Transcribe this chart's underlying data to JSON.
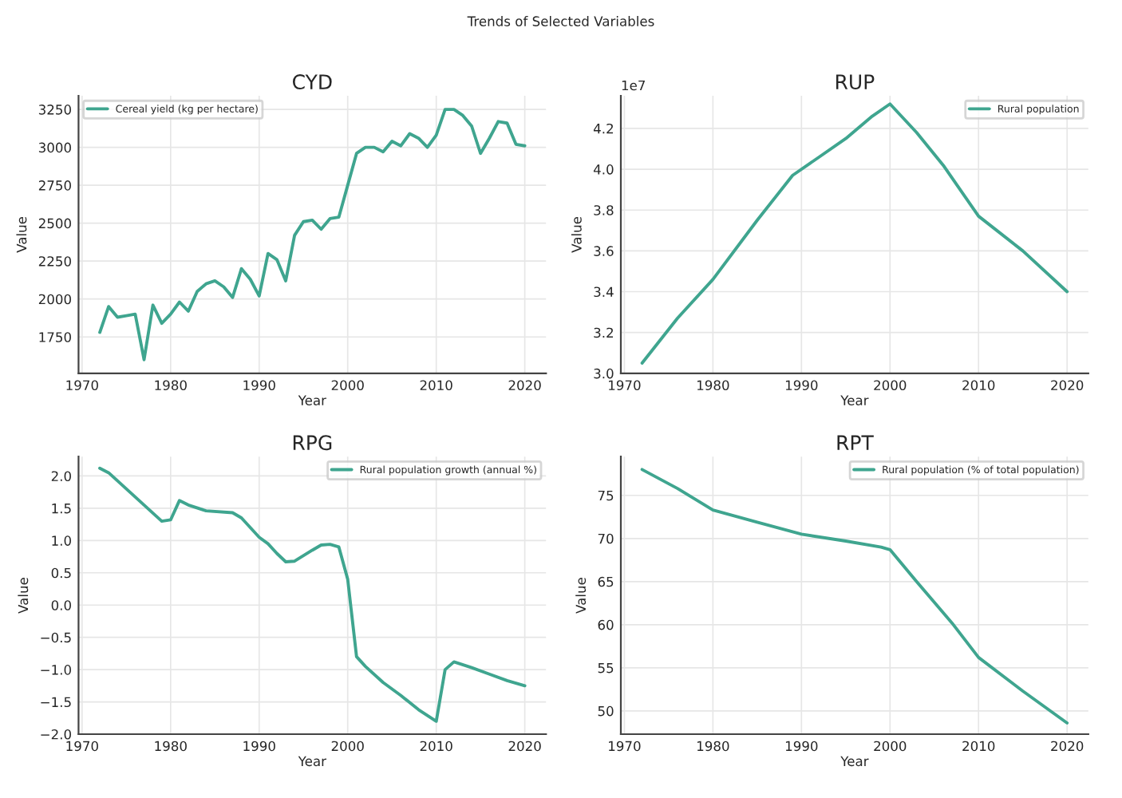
{
  "chart_data": [
    {
      "type": "line",
      "title": "CYD",
      "xlabel": "Year",
      "ylabel": "Value",
      "legend": "top left",
      "grid": true,
      "annotations": [
        "Trends of Selected Variables"
      ],
      "x": [
        1972,
        1973,
        1974,
        1975,
        1976,
        1977,
        1978,
        1979,
        1980,
        1981,
        1982,
        1983,
        1984,
        1985,
        1986,
        1987,
        1988,
        1989,
        1990,
        1991,
        1992,
        1993,
        1994,
        1995,
        1996,
        1997,
        1998,
        1999,
        2000,
        2001,
        2002,
        2003,
        2004,
        2005,
        2006,
        2007,
        2008,
        2009,
        2010,
        2011,
        2012,
        2013,
        2014,
        2015,
        2016,
        2017,
        2018,
        2019,
        2020
      ],
      "series": [
        {
          "name": "Cereal yield (kg per hectare)",
          "color": "#3fa58f",
          "values": [
            1780,
            1950,
            1880,
            1890,
            1900,
            1600,
            1960,
            1840,
            1900,
            1980,
            1920,
            2050,
            2100,
            2120,
            2080,
            2010,
            2200,
            2130,
            2020,
            2300,
            2260,
            2120,
            2420,
            2510,
            2520,
            2460,
            2530,
            2540,
            2750,
            2960,
            3000,
            3000,
            2970,
            3040,
            3010,
            3090,
            3060,
            3000,
            3080,
            3250,
            3250,
            3210,
            3140,
            2960,
            3060,
            3170,
            3160,
            3020,
            3010
          ]
        }
      ],
      "xlim": [
        1969.6,
        2022.4
      ],
      "xticks": [
        1970,
        1980,
        1990,
        2000,
        2010,
        2020
      ],
      "ylim": [
        1510,
        3340
      ],
      "yticks": [
        1750,
        2000,
        2250,
        2500,
        2750,
        3000,
        3250
      ]
    },
    {
      "type": "line",
      "title": "RUP",
      "xlabel": "Year",
      "ylabel": "Value",
      "legend": "top right",
      "grid": true,
      "annotations": [
        "1e7"
      ],
      "x": [
        1972,
        1976,
        1980,
        1985,
        1989,
        1992,
        1995,
        1998,
        2000,
        2003,
        2006,
        2010,
        2015,
        2020
      ],
      "series": [
        {
          "name": "Rural population",
          "color": "#3fa58f",
          "values": [
            3.05,
            3.27,
            3.46,
            3.75,
            3.97,
            4.06,
            4.15,
            4.26,
            4.32,
            4.18,
            4.02,
            3.77,
            3.6,
            3.4
          ]
        }
      ],
      "xlim": [
        1969.6,
        2022.4
      ],
      "xticks": [
        1970,
        1980,
        1990,
        2000,
        2010,
        2020
      ],
      "ylim": [
        3.0,
        4.36
      ],
      "yticks": [
        {
          "value": 3,
          "label": "3.0"
        },
        3.2,
        3.4,
        3.6,
        3.8,
        {
          "value": 4,
          "label": "4.0"
        },
        4.2
      ]
    },
    {
      "type": "line",
      "title": "RPG",
      "xlabel": "Year",
      "ylabel": "Value",
      "legend": "top right",
      "grid": true,
      "x": [
        1972,
        1973,
        1975,
        1977,
        1979,
        1980,
        1981,
        1982,
        1984,
        1987,
        1988,
        1990,
        1991,
        1992,
        1993,
        1994,
        1996,
        1997,
        1998,
        1999,
        2000,
        2001,
        2002,
        2004,
        2006,
        2008,
        2010,
        2011,
        2012,
        2014,
        2016,
        2018,
        2020
      ],
      "series": [
        {
          "name": "Rural population growth (annual %)",
          "color": "#3fa58f",
          "values": [
            2.12,
            2.05,
            1.8,
            1.55,
            1.3,
            1.32,
            1.62,
            1.55,
            1.46,
            1.43,
            1.35,
            1.05,
            0.95,
            0.8,
            0.67,
            0.68,
            0.85,
            0.93,
            0.94,
            0.9,
            0.4,
            -0.8,
            -0.95,
            -1.2,
            -1.4,
            -1.62,
            -1.8,
            -1.0,
            -0.88,
            -0.97,
            -1.07,
            -1.17,
            -1.25
          ]
        }
      ],
      "xlim": [
        1969.6,
        2022.4
      ],
      "xticks": [
        1970,
        1980,
        1990,
        2000,
        2010,
        2020
      ],
      "ylim": [
        -2.0,
        2.3
      ],
      "yticks": [
        {
          "value": -2.0,
          "label": "−2.0"
        },
        {
          "value": -1.5,
          "label": "−1.5"
        },
        {
          "value": -1.0,
          "label": "−1.0"
        },
        {
          "value": -0.5,
          "label": "−0.5"
        },
        {
          "value": 0.0,
          "label": "0.0"
        },
        {
          "value": 0.5,
          "label": "0.5"
        },
        {
          "value": 1.0,
          "label": "1.0"
        },
        {
          "value": 1.5,
          "label": "1.5"
        },
        {
          "value": 2.0,
          "label": "2.0"
        }
      ]
    },
    {
      "type": "line",
      "title": "RPT",
      "xlabel": "Year",
      "ylabel": "Value",
      "legend": "top right",
      "grid": true,
      "x": [
        1972,
        1976,
        1980,
        1985,
        1990,
        1995,
        1999,
        2000,
        2003,
        2007,
        2010,
        2015,
        2020
      ],
      "series": [
        {
          "name": "Rural population (% of total population)",
          "color": "#3fa58f",
          "values": [
            78.0,
            75.8,
            73.3,
            71.9,
            70.5,
            69.7,
            69.0,
            68.7,
            65.0,
            60.2,
            56.2,
            52.3,
            48.6
          ]
        }
      ],
      "xlim": [
        1969.6,
        2022.4
      ],
      "xticks": [
        1970,
        1980,
        1990,
        2000,
        2010,
        2020
      ],
      "ylim": [
        47.3,
        79.5
      ],
      "yticks": [
        50,
        55,
        60,
        65,
        70,
        75
      ]
    }
  ]
}
